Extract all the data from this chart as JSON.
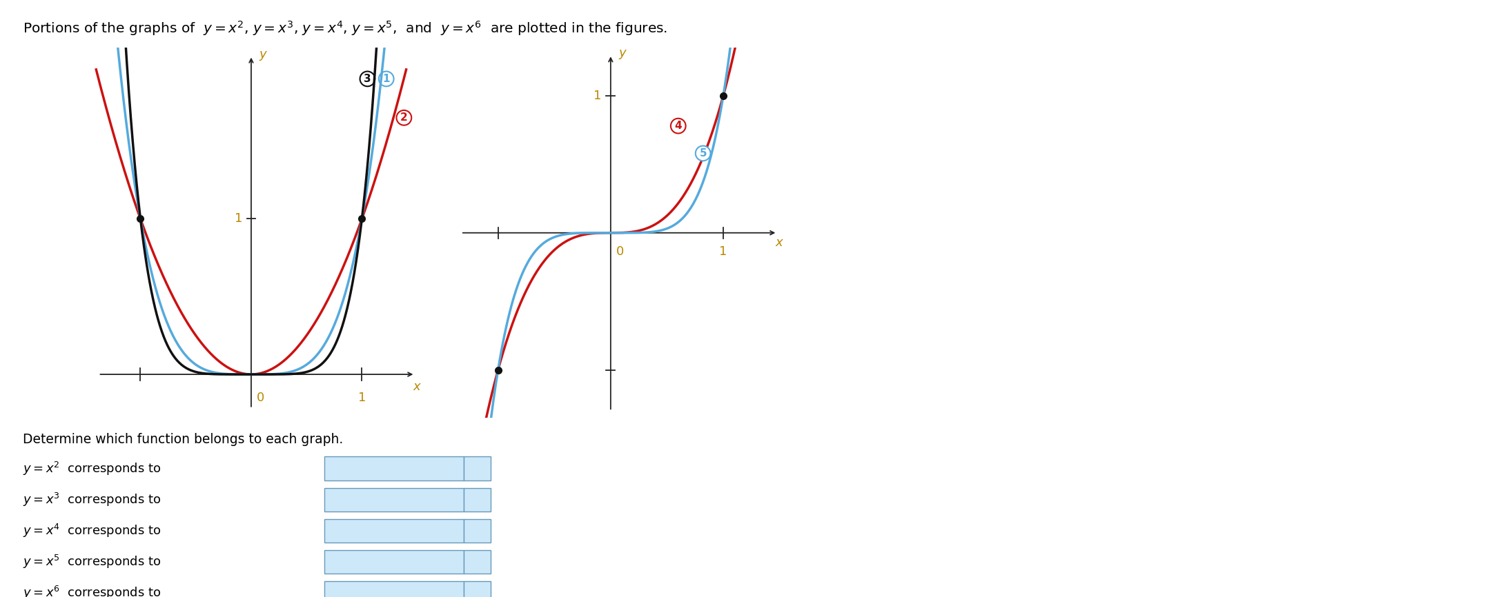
{
  "curve_red_color": "#cc1111",
  "curve_blue_color": "#55aadd",
  "curve_black_color": "#111111",
  "axis_color": "#222222",
  "tick_label_color": "#bb8800",
  "dot_color": "#111111",
  "background_color": "#ffffff",
  "text_color": "#000000",
  "select_bg_color": "#cde8f8",
  "select_border_color": "#6699bb",
  "label_black": "#111111",
  "label_blue": "#55aadd",
  "label_red": "#cc1111",
  "fig_width": 21.88,
  "fig_height": 8.66,
  "left_xlim": [
    -1.45,
    1.55
  ],
  "left_ylim": [
    -0.28,
    2.1
  ],
  "right_xlim": [
    -1.4,
    1.55
  ],
  "right_ylim": [
    -1.35,
    1.35
  ]
}
